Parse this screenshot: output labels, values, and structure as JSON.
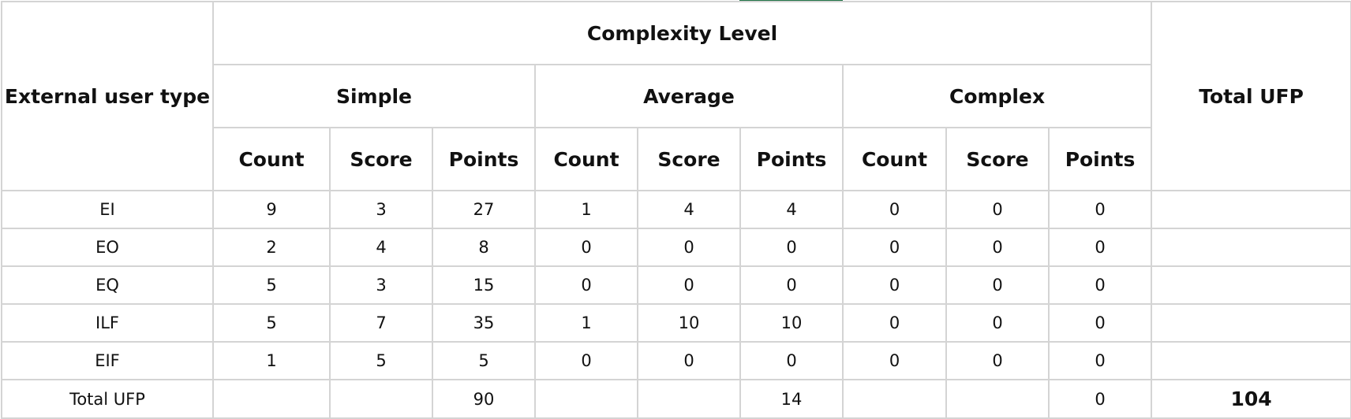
{
  "sheet": {
    "accent_color": "#217346",
    "header": {
      "first_col": "External user type",
      "group": "Complexity Level",
      "total_col": "Total UFP",
      "levels": [
        "Simple",
        "Average",
        "Complex"
      ],
      "sub": [
        "Count",
        "Score",
        "Points"
      ]
    },
    "rows": [
      {
        "type": "EI",
        "values": [
          "9",
          "3",
          "27",
          "1",
          "4",
          "4",
          "0",
          "0",
          "0"
        ],
        "total": ""
      },
      {
        "type": "EO",
        "values": [
          "2",
          "4",
          "8",
          "0",
          "0",
          "0",
          "0",
          "0",
          "0"
        ],
        "total": ""
      },
      {
        "type": "EQ",
        "values": [
          "5",
          "3",
          "15",
          "0",
          "0",
          "0",
          "0",
          "0",
          "0"
        ],
        "total": ""
      },
      {
        "type": "ILF",
        "values": [
          "5",
          "7",
          "35",
          "1",
          "10",
          "10",
          "0",
          "0",
          "0"
        ],
        "total": ""
      },
      {
        "type": "EIF",
        "values": [
          "1",
          "5",
          "5",
          "0",
          "0",
          "0",
          "0",
          "0",
          "0"
        ],
        "total": ""
      }
    ],
    "total_row": {
      "label": "Total UFP",
      "values": [
        "",
        "",
        "90",
        "",
        "",
        "14",
        "",
        "",
        "0"
      ],
      "grand_total": "104"
    }
  }
}
